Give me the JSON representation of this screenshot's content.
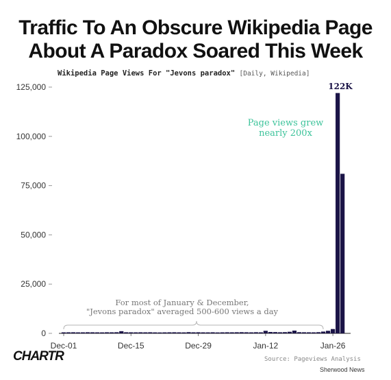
{
  "header": {
    "title_line1": "Traffic To An Obscure Wikipedia Page",
    "title_line2": "About A Paradox Soared This Week",
    "subtitle_main": "Wikipedia Page Views For \"Jevons paradox\"",
    "subtitle_source": "[Daily, Wikipedia]"
  },
  "footer": {
    "logo": "CHARTR",
    "source": "Source: Pageviews Analysis",
    "publisher": "Sherwood News"
  },
  "colors": {
    "bar": "#1b1447",
    "annotation_green": "#3cc39a",
    "bracket": "#b4b4b4",
    "axis_text": "#333333"
  },
  "chart_data": {
    "type": "bar",
    "title": "Wikipedia Page Views For \"Jevons paradox\"",
    "ylim": [
      0,
      125000
    ],
    "yticks": [
      0,
      25000,
      50000,
      75000,
      100000,
      125000
    ],
    "ytick_labels": [
      "0",
      "25,000",
      "50,000",
      "75,000",
      "100,000",
      "125,000"
    ],
    "xtick_labels": [
      "Dec-01",
      "Dec-15",
      "Dec-29",
      "Jan-12",
      "Jan-26"
    ],
    "xtick_index": [
      0,
      14,
      28,
      42,
      56
    ],
    "grid": false,
    "series": [
      {
        "values": [
          520,
          540,
          560,
          510,
          530,
          570,
          550,
          520,
          500,
          560,
          540,
          580,
          1100,
          560,
          540,
          520,
          550,
          530,
          560,
          500,
          470,
          510,
          540,
          560,
          520,
          500,
          620,
          540,
          560,
          520,
          510,
          550,
          480,
          530,
          560,
          540,
          570,
          600,
          560,
          520,
          580,
          530,
          1300,
          700,
          650,
          560,
          620,
          800,
          1400,
          600,
          560,
          540,
          520,
          600,
          900,
          1300,
          2200,
          122000,
          81000
        ]
      }
    ],
    "annotations": {
      "peak_label": "122K",
      "growth_line1": "Page views grew",
      "growth_line2": "nearly 200x",
      "avg_line1": "For most of January & December,",
      "avg_line2": "\"Jevons paradox\" averaged 500-600 views a day"
    }
  }
}
